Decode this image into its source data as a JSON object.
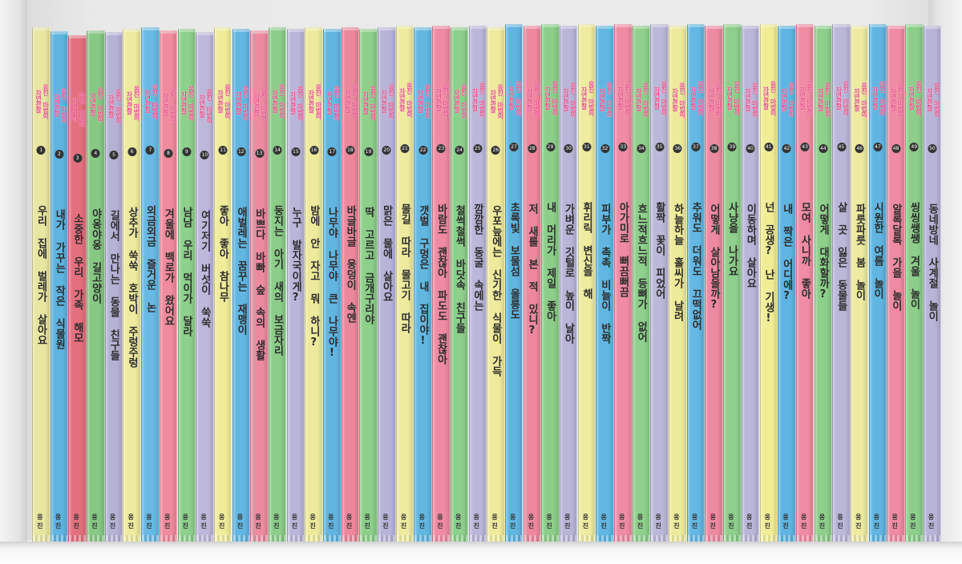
{
  "series_label": "웅진 마법의 자연관찰",
  "publisher": "웅진",
  "colors": {
    "yellow": "#e9e6a2",
    "blue": "#5fb4e0",
    "pink": "#ec7d92",
    "green": "#8ccf8b",
    "lavender": "#b9b5d8",
    "ltyellow": "#f1ed9d",
    "ltblue": "#6cbde6",
    "rose": "#f08ca5"
  },
  "books": [
    {
      "num": "1",
      "title": "우리 집에 벌레가 살아요",
      "color": "#e9e6a2"
    },
    {
      "num": "2",
      "title": "내가 가꾸는 작은 식물원",
      "color": "#5fb4e0"
    },
    {
      "num": "3",
      "title": "소중한 우리 가족 해모",
      "color": "#e4707f"
    },
    {
      "num": "4",
      "title": "야옹야옹 길고양이",
      "color": "#86c884"
    },
    {
      "num": "5",
      "title": "길에서 만나는 동물 친구들",
      "color": "#b6b2d6"
    },
    {
      "num": "6",
      "title": "상추가 쑥쑥 호박이 주렁주렁",
      "color": "#eeea9f"
    },
    {
      "num": "7",
      "title": "외금외금 즐거운 논",
      "color": "#68b9e3"
    },
    {
      "num": "8",
      "title": "겨울에 백로가 왔어요",
      "color": "#ef8b9d"
    },
    {
      "num": "9",
      "title": "남남 우리 먹이가 달라",
      "color": "#8fd08c"
    },
    {
      "num": "10",
      "title": "여기저기 버섯이 쑥쑥",
      "color": "#bdb8da"
    },
    {
      "num": "11",
      "title": "좋아 좋아 참나무",
      "color": "#f0ec9b"
    },
    {
      "num": "12",
      "title": "애벌레는 꿈꾸는 재맹이",
      "color": "#62b7e2"
    },
    {
      "num": "13",
      "title": "바쁘다 바빠 숲 속의 생활",
      "color": "#ee8aa0"
    },
    {
      "num": "14",
      "title": "둥지는 아기 새의 보금자리",
      "color": "#8ccd8a"
    },
    {
      "num": "15",
      "title": "누구 발자국이게?",
      "color": "#bab6d9"
    },
    {
      "num": "16",
      "title": "밤에 안 자고 뭐 하니?",
      "color": "#eeea9c"
    },
    {
      "num": "17",
      "title": "나무야 나무야 큰 나무야!",
      "color": "#60b6e1"
    },
    {
      "num": "18",
      "title": "바글바글 웅덩이 속엔",
      "color": "#ec879c"
    },
    {
      "num": "19",
      "title": "딱 고르고 금개구리야",
      "color": "#8dcf8b"
    },
    {
      "num": "20",
      "title": "맑은 물에 살아요",
      "color": "#b8b4d8"
    },
    {
      "num": "21",
      "title": "물길 따라 물고기 따라",
      "color": "#efeb9e"
    },
    {
      "num": "22",
      "title": "갯벌 구멍은 내 집이야!",
      "color": "#63b8e2"
    },
    {
      "num": "23",
      "title": "바람도 괜찮아 파도도 괜찮아",
      "color": "#ef8ba2"
    },
    {
      "num": "24",
      "title": "철썩철썩 바닷속 친구들",
      "color": "#8ecf8c"
    },
    {
      "num": "25",
      "title": "깜깜한 동굴 속에는",
      "color": "#bbb7d9"
    },
    {
      "num": "26",
      "title": "우포늪에는 신기한 식물이 가득",
      "color": "#efea9d"
    },
    {
      "num": "27",
      "title": "초록빛 보물섬 울릉도",
      "color": "#61b6e1"
    },
    {
      "num": "28",
      "title": "저 새를 본 적 있니?",
      "color": "#ed889e"
    },
    {
      "num": "29",
      "title": "내 머리가 제일 좋아",
      "color": "#8dce8b"
    },
    {
      "num": "30",
      "title": "가벼운 깃털로 높이 날아",
      "color": "#b9b5d8"
    },
    {
      "num": "31",
      "title": "휘리릭 변신을 해",
      "color": "#efeb9f"
    },
    {
      "num": "32",
      "title": "피부가 촉촉 비늘이 반짝",
      "color": "#62b7e2"
    },
    {
      "num": "33",
      "title": "아가미로 뻐끔뻐끔",
      "color": "#ef8ca3"
    },
    {
      "num": "34",
      "title": "흐느적흐느적 등뼈가 없어",
      "color": "#8fd08d"
    },
    {
      "num": "35",
      "title": "활짝 꽃이 피었어",
      "color": "#bcb8da"
    },
    {
      "num": "36",
      "title": "하늘하늘 홀씨가 날려",
      "color": "#eeea9c"
    },
    {
      "num": "37",
      "title": "추워도 더워도 끄떡없어",
      "color": "#64b8e3"
    },
    {
      "num": "38",
      "title": "어떻게 살아남을까?",
      "color": "#ee89a0"
    },
    {
      "num": "39",
      "title": "사냥을 나가요",
      "color": "#8dcf8b"
    },
    {
      "num": "40",
      "title": "이동하며 살아요",
      "color": "#bab6d9"
    },
    {
      "num": "41",
      "title": "넌 공생? 난 기생!",
      "color": "#f1ed97"
    },
    {
      "num": "42",
      "title": "내 짝은 어디에?",
      "color": "#5fb5e1"
    },
    {
      "num": "43",
      "title": "모여 사니까 좋아",
      "color": "#f08ca3"
    },
    {
      "num": "44",
      "title": "어떻게 대화할까?",
      "color": "#8ecf8c"
    },
    {
      "num": "45",
      "title": "살 곳 잃은 동물들",
      "color": "#bbb7d9"
    },
    {
      "num": "46",
      "title": "파릇파릇 봄 놀이",
      "color": "#eeeaa0"
    },
    {
      "num": "47",
      "title": "시원한 여름 놀이",
      "color": "#60b6e1"
    },
    {
      "num": "48",
      "title": "알록달록 가을 놀이",
      "color": "#ef8ba2"
    },
    {
      "num": "49",
      "title": "씽씽쌩쌩 겨울 놀이",
      "color": "#8dce8b"
    },
    {
      "num": "50",
      "title": "동네방네 사계절 놀이",
      "color": "#b8b4d8"
    }
  ]
}
